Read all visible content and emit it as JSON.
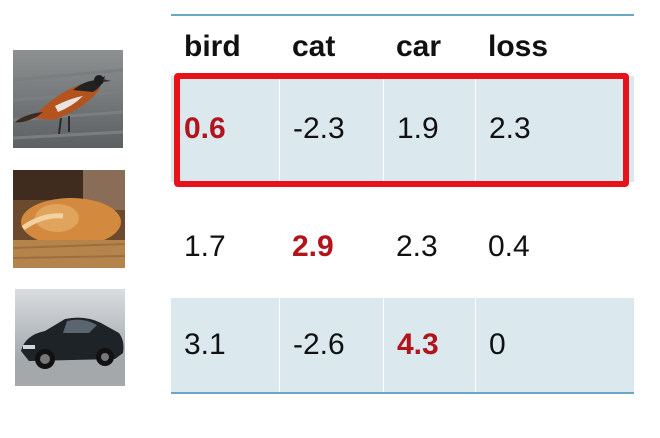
{
  "table": {
    "headers": [
      "bird",
      "cat",
      "car",
      "loss"
    ],
    "rows": [
      {
        "image": "bird-photo",
        "cells": [
          "0.6",
          "-2.3",
          "1.9",
          "2.3"
        ],
        "highlight_col": 0
      },
      {
        "image": "cat-photo",
        "cells": [
          "1.7",
          "2.9",
          "2.3",
          "0.4"
        ],
        "highlight_col": 1
      },
      {
        "image": "car-photo",
        "cells": [
          "3.1",
          "-2.6",
          "4.3",
          "0"
        ],
        "highlight_col": 2
      }
    ],
    "selected_row": 0
  },
  "colors": {
    "highlight_text": "#b3131b",
    "selection_box": "#e8121b",
    "row_shade": "#dbe8ee",
    "rule_line": "#6aa7c4"
  }
}
